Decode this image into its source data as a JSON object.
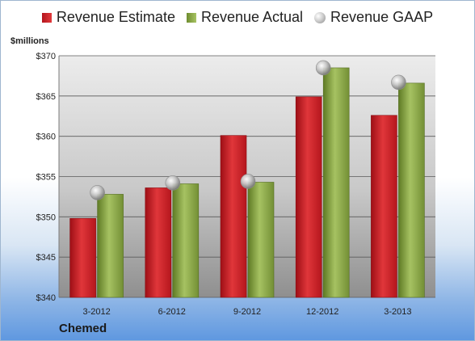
{
  "legend": {
    "estimate": "Revenue Estimate",
    "actual": "Revenue Actual",
    "gaap": "Revenue GAAP"
  },
  "unit_label": "$millions",
  "company": "Chemed",
  "colors": {
    "estimate": "#cc1f26",
    "actual": "#8fae4a",
    "gaap": "#c0c0c0"
  },
  "chart_data": {
    "type": "bar",
    "categories": [
      "3-2012",
      "6-2012",
      "9-2012",
      "12-2012",
      "3-2013"
    ],
    "series": [
      {
        "name": "Revenue Estimate",
        "values": [
          349.8,
          353.6,
          360.1,
          364.9,
          362.6
        ]
      },
      {
        "name": "Revenue Actual",
        "values": [
          352.8,
          354.1,
          354.3,
          368.5,
          366.6
        ]
      },
      {
        "name": "Revenue GAAP",
        "type": "scatter",
        "values": [
          353.0,
          354.2,
          354.4,
          368.5,
          366.7
        ]
      }
    ],
    "yticks": [
      "$340",
      "$345",
      "$350",
      "$355",
      "$360",
      "$365",
      "$370"
    ],
    "ylim": [
      340,
      370
    ],
    "ylabel": "$millions",
    "grid": true,
    "legend_position": "top"
  }
}
